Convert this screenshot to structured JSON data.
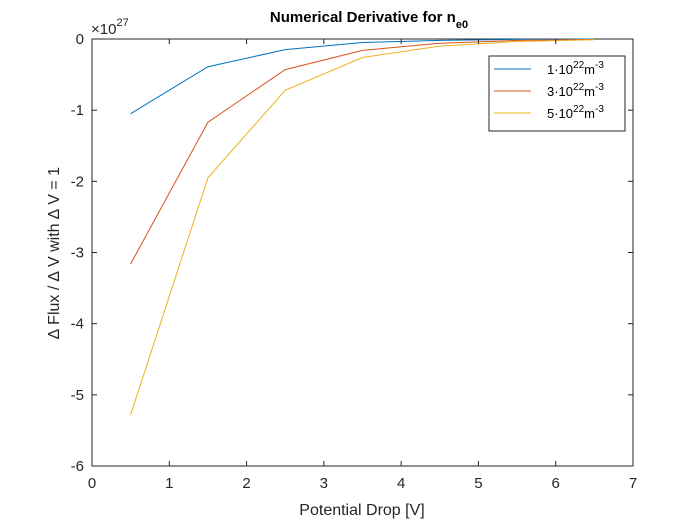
{
  "chart_data": {
    "type": "line",
    "title": "Numerical Derivative for n",
    "title_subscript": "e0",
    "xlabel": "Potential Drop [V]",
    "ylabel": "∆ Flux / ∆ V with ∆ V = 1",
    "y_exponent_base": "×10",
    "y_exponent_power": "27",
    "xlim": [
      0,
      7
    ],
    "ylim": [
      -6,
      0
    ],
    "x_ticks": [
      "0",
      "1",
      "2",
      "3",
      "4",
      "5",
      "6",
      "7"
    ],
    "y_ticks": [
      "0",
      "-1",
      "-2",
      "-3",
      "-4",
      "-5",
      "-6"
    ],
    "grid": false,
    "legend_position": "top-right",
    "x": [
      0.5,
      1.5,
      2.5,
      3.5,
      4.5,
      5.5,
      6.5
    ],
    "series": [
      {
        "name": "1·10²²m⁻³",
        "label_base": "1·10",
        "label_exp": "22",
        "label_unit": "m",
        "label_unit_exp": "-3",
        "color": "#0072BD",
        "values": [
          -1.05,
          -0.39,
          -0.15,
          -0.05,
          -0.02,
          -0.005,
          0.0
        ]
      },
      {
        "name": "3·10²²m⁻³",
        "label_base": "3·10",
        "label_exp": "22",
        "label_unit": "m",
        "label_unit_exp": "-3",
        "color": "#D95319",
        "values": [
          -3.16,
          -1.17,
          -0.43,
          -0.16,
          -0.06,
          -0.02,
          -0.005
        ]
      },
      {
        "name": "5·10²²m⁻³",
        "label_base": "5·10",
        "label_exp": "22",
        "label_unit": "m",
        "label_unit_exp": "-3",
        "color": "#EDB120",
        "values": [
          -5.28,
          -1.95,
          -0.72,
          -0.26,
          -0.1,
          -0.035,
          -0.01
        ]
      }
    ]
  }
}
